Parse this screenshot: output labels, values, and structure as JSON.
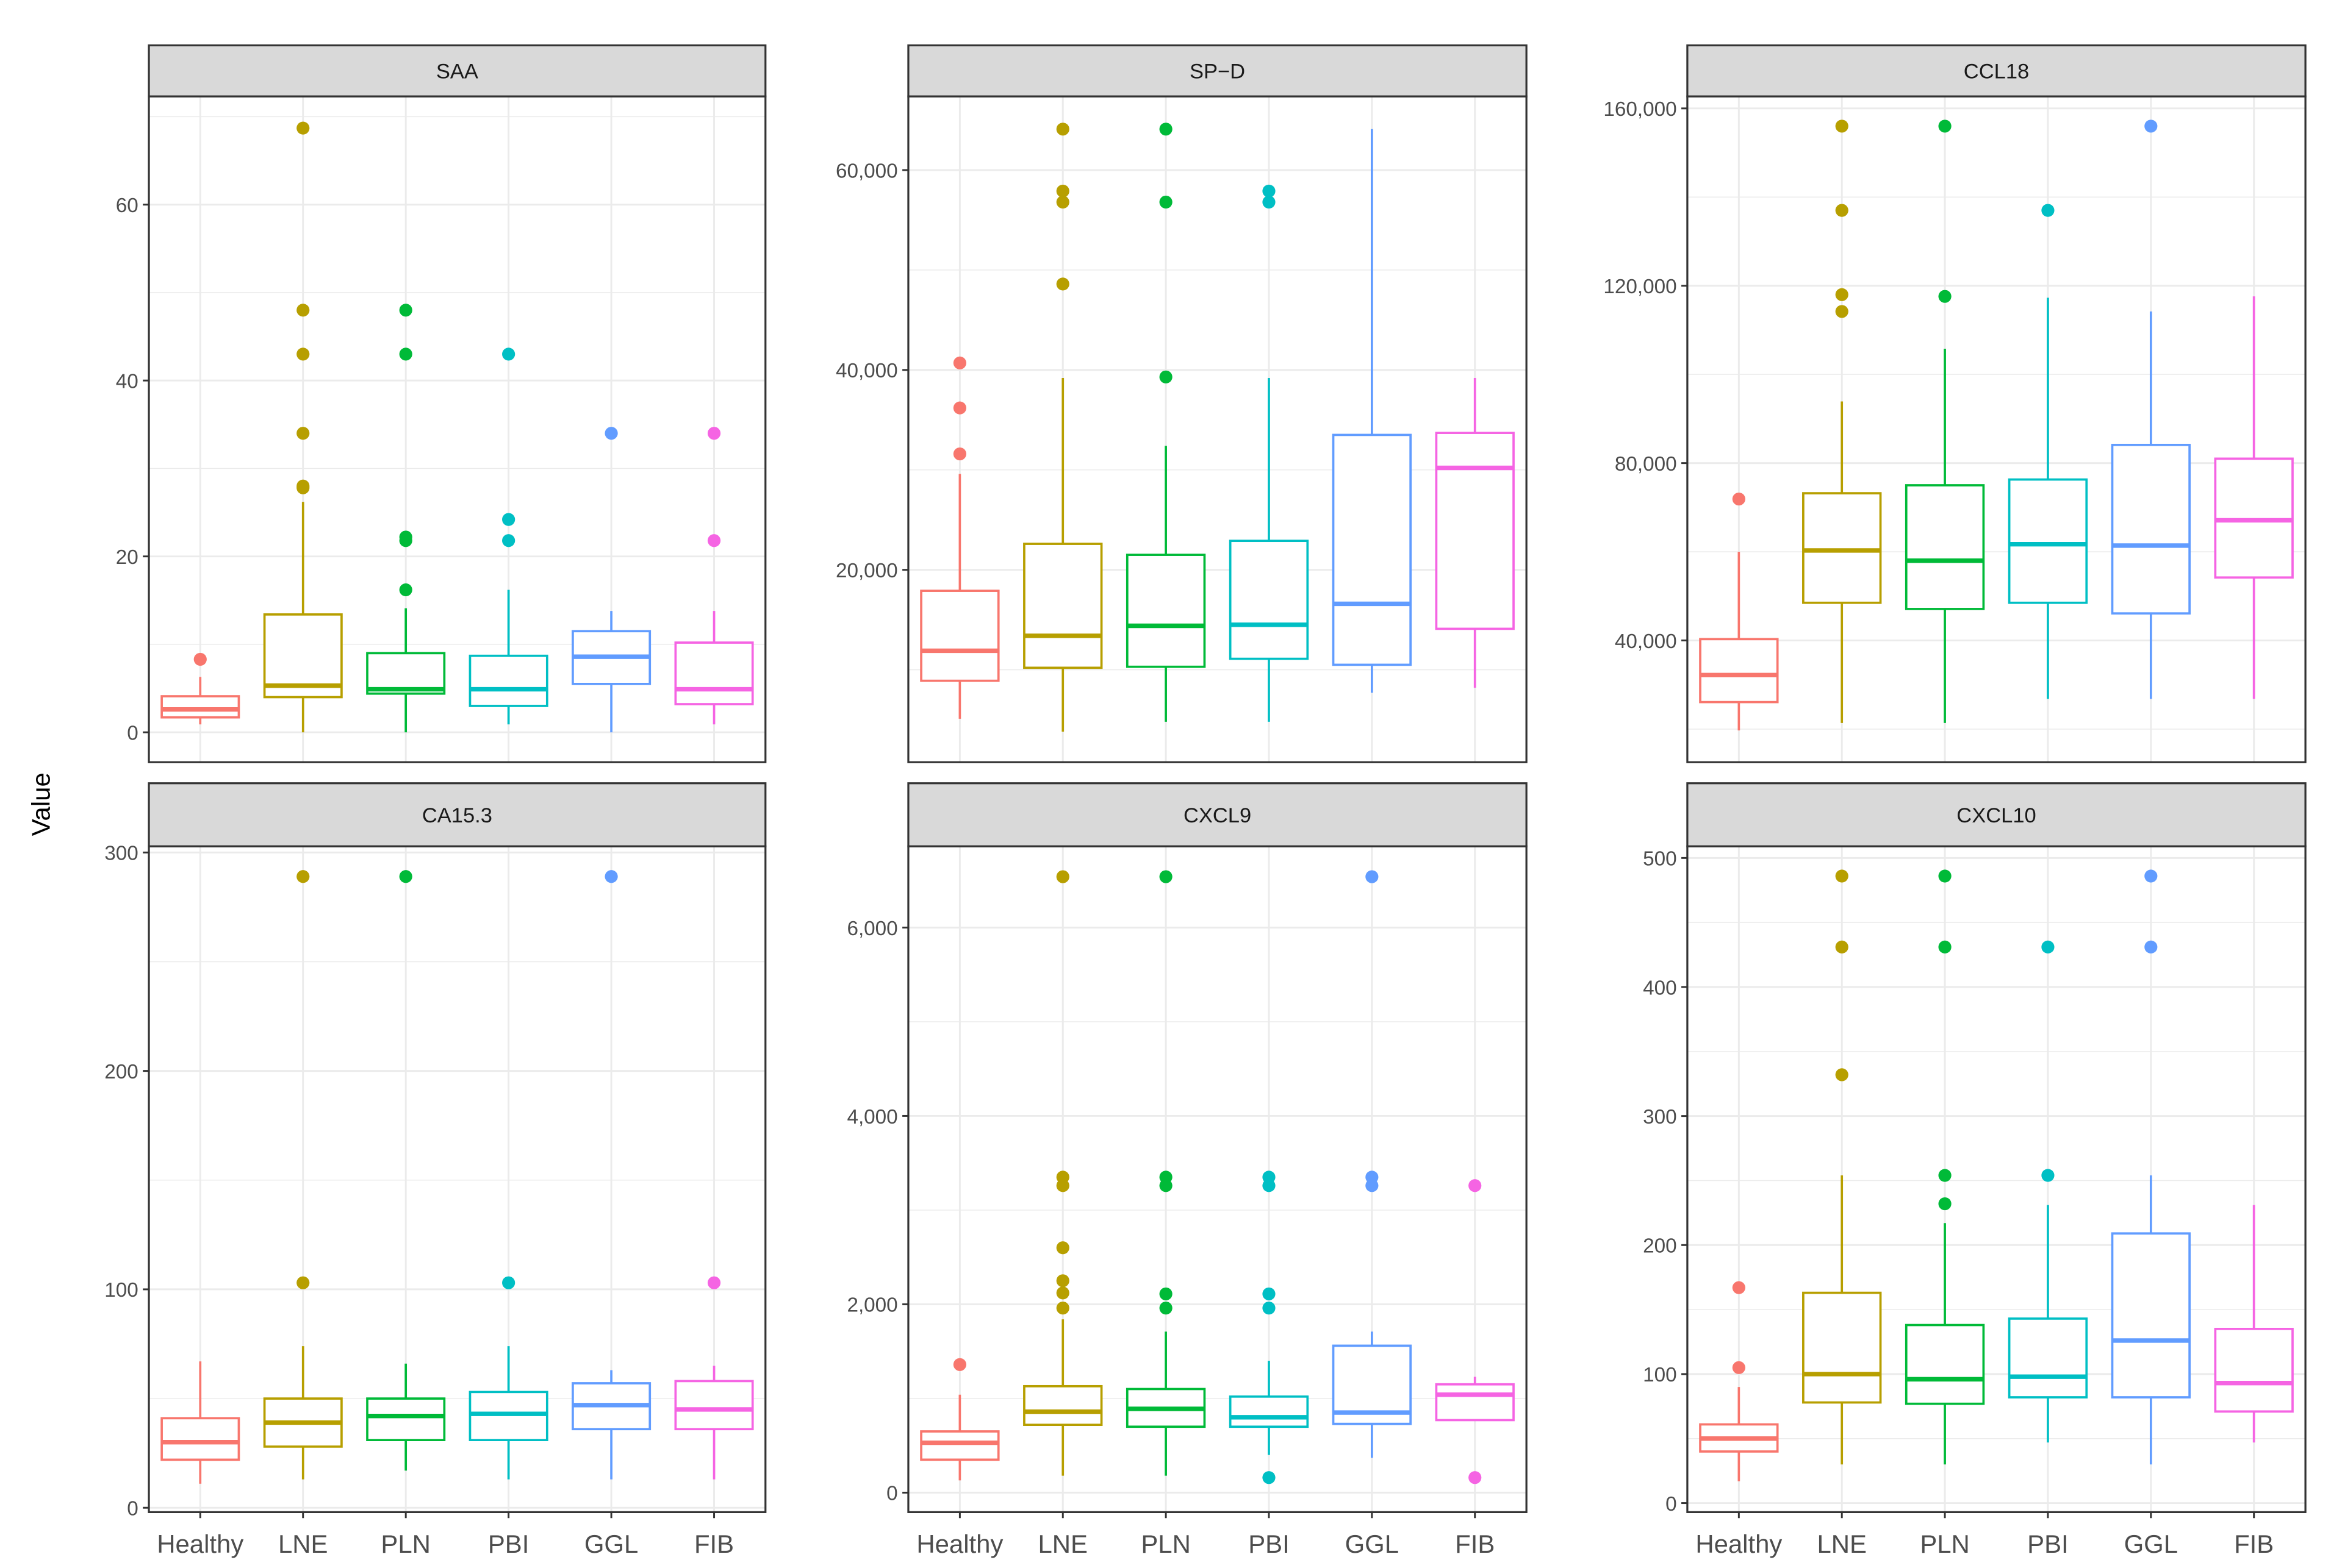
{
  "chart_data": {
    "type": "box",
    "ylabel": "Value",
    "xlabel": "",
    "categories": [
      "Healthy",
      "LNE",
      "PLN",
      "PBI",
      "GGL",
      "FIB"
    ],
    "colors": [
      "#F8766D",
      "#B79F00",
      "#00BA38",
      "#00BFC4",
      "#619CFF",
      "#F564E3"
    ],
    "grid": true,
    "legend": "none",
    "panels": [
      {
        "title": "SAA",
        "ylim": [
          -3.4,
          72.3
        ],
        "yticks": [
          0,
          20,
          40,
          60
        ],
        "ytick_labels": [
          "0",
          "20",
          "40",
          "60"
        ],
        "boxes": [
          {
            "low": 0.9,
            "q1": 1.7,
            "median": 2.6,
            "q3": 4.1,
            "high": 6.3,
            "outliers": [
              8.3
            ]
          },
          {
            "low": 0,
            "q1": 4.0,
            "median": 5.3,
            "q3": 13.4,
            "high": 26.2,
            "outliers": [
              27.8,
              28,
              34,
              43,
              48,
              68.7
            ]
          },
          {
            "low": 0,
            "q1": 4.4,
            "median": 4.9,
            "q3": 9.0,
            "high": 14.1,
            "outliers": [
              16.2,
              21.8,
              22.2,
              43,
              48
            ]
          },
          {
            "low": 0.9,
            "q1": 3.0,
            "median": 4.9,
            "q3": 8.7,
            "high": 16.2,
            "outliers": [
              21.8,
              24.2,
              43
            ]
          },
          {
            "low": 0,
            "q1": 5.5,
            "median": 8.6,
            "q3": 11.5,
            "high": 13.8,
            "outliers": [
              34
            ]
          },
          {
            "low": 0.9,
            "q1": 3.2,
            "median": 4.9,
            "q3": 10.2,
            "high": 13.8,
            "outliers": [
              21.8,
              34
            ]
          }
        ]
      },
      {
        "title": "SP−D",
        "ylim": [
          750,
          67370
        ],
        "yticks": [
          20000,
          40000,
          60000
        ],
        "ytick_labels": [
          "20,000",
          "40,000",
          "60,000"
        ],
        "boxes": [
          {
            "low": 5100,
            "q1": 8900,
            "median": 11900,
            "q3": 17900,
            "high": 29600,
            "outliers": [
              31600,
              36200,
              40700
            ]
          },
          {
            "low": 3800,
            "q1": 10200,
            "median": 13400,
            "q3": 22600,
            "high": 39200,
            "outliers": [
              48600,
              56800,
              57900,
              64100
            ]
          },
          {
            "low": 4800,
            "q1": 10300,
            "median": 14400,
            "q3": 21500,
            "high": 32400,
            "outliers": [
              39300,
              56800,
              64100
            ]
          },
          {
            "low": 4800,
            "q1": 11100,
            "median": 14500,
            "q3": 22900,
            "high": 39200,
            "outliers": [
              56800,
              57900
            ]
          },
          {
            "low": 7700,
            "q1": 10500,
            "median": 16600,
            "q3": 33500,
            "high": 64100,
            "outliers": []
          },
          {
            "low": 8200,
            "q1": 14100,
            "median": 30200,
            "q3": 33700,
            "high": 39200,
            "outliers": []
          }
        ]
      },
      {
        "title": "CCL18",
        "ylim": [
          12540,
          162700
        ],
        "yticks": [
          40000,
          80000,
          120000,
          160000
        ],
        "ytick_labels": [
          "40,000",
          "80,000",
          "120,000",
          "160,000"
        ],
        "boxes": [
          {
            "low": 19700,
            "q1": 26100,
            "median": 32200,
            "q3": 40300,
            "high": 60000,
            "outliers": [
              71900
            ]
          },
          {
            "low": 21400,
            "q1": 48500,
            "median": 60300,
            "q3": 73200,
            "high": 93900,
            "outliers": [
              114200,
              118000,
              137000,
              156000
            ]
          },
          {
            "low": 21400,
            "q1": 47100,
            "median": 58000,
            "q3": 75000,
            "high": 105800,
            "outliers": [
              117600,
              156000
            ]
          },
          {
            "low": 26800,
            "q1": 48500,
            "median": 61700,
            "q3": 76300,
            "high": 117300,
            "outliers": [
              137000
            ]
          },
          {
            "low": 26800,
            "q1": 46100,
            "median": 61400,
            "q3": 84100,
            "high": 114200,
            "outliers": [
              156000
            ]
          },
          {
            "low": 26800,
            "q1": 54200,
            "median": 67100,
            "q3": 81000,
            "high": 117600,
            "outliers": []
          }
        ]
      },
      {
        "title": "CA15.3",
        "ylim": [
          -2,
          302.8
        ],
        "yticks": [
          0,
          100,
          200,
          300
        ],
        "ytick_labels": [
          "0",
          "100",
          "200",
          "300"
        ],
        "boxes": [
          {
            "low": 11,
            "q1": 22,
            "median": 30,
            "q3": 41,
            "high": 67,
            "outliers": []
          },
          {
            "low": 13,
            "q1": 28,
            "median": 39,
            "q3": 50,
            "high": 74,
            "outliers": [
              103,
              289
            ]
          },
          {
            "low": 17,
            "q1": 31,
            "median": 42,
            "q3": 50,
            "high": 66,
            "outliers": [
              289
            ]
          },
          {
            "low": 13,
            "q1": 31,
            "median": 43,
            "q3": 53,
            "high": 74,
            "outliers": [
              103
            ]
          },
          {
            "low": 13,
            "q1": 36,
            "median": 47,
            "q3": 57,
            "high": 63,
            "outliers": [
              289
            ]
          },
          {
            "low": 13,
            "q1": 36,
            "median": 45,
            "q3": 58,
            "high": 65,
            "outliers": [
              103
            ]
          }
        ]
      },
      {
        "title": "CXCL9",
        "ylim": [
          -207,
          6862
        ],
        "yticks": [
          0,
          2000,
          4000,
          6000
        ],
        "ytick_labels": [
          "0",
          "2,000",
          "4,000",
          "6,000"
        ],
        "boxes": [
          {
            "low": 130,
            "q1": 350,
            "median": 530,
            "q3": 650,
            "high": 1040,
            "outliers": [
              1360
            ]
          },
          {
            "low": 180,
            "q1": 720,
            "median": 860,
            "q3": 1130,
            "high": 1840,
            "outliers": [
              1960,
              2120,
              2250,
              2600,
              3260,
              3350,
              6540
            ]
          },
          {
            "low": 180,
            "q1": 700,
            "median": 890,
            "q3": 1100,
            "high": 1710,
            "outliers": [
              1960,
              2110,
              3260,
              3350,
              6540
            ]
          },
          {
            "low": 400,
            "q1": 700,
            "median": 800,
            "q3": 1020,
            "high": 1400,
            "outliers": [
              160,
              1960,
              2110,
              3260,
              3350
            ]
          },
          {
            "low": 370,
            "q1": 730,
            "median": 850,
            "q3": 1560,
            "high": 1710,
            "outliers": [
              3260,
              3350,
              6540
            ]
          },
          {
            "low": 770,
            "q1": 770,
            "median": 1040,
            "q3": 1150,
            "high": 1230,
            "outliers": [
              160,
              3260
            ]
          }
        ]
      },
      {
        "title": "CXCL10",
        "ylim": [
          -7,
          509
        ],
        "yticks": [
          0,
          100,
          200,
          300,
          400,
          500
        ],
        "ytick_labels": [
          "0",
          "100",
          "200",
          "300",
          "400",
          "500"
        ],
        "boxes": [
          {
            "low": 17,
            "q1": 40,
            "median": 50,
            "q3": 61,
            "high": 90,
            "outliers": [
              105,
              167
            ]
          },
          {
            "low": 30,
            "q1": 78,
            "median": 100,
            "q3": 163,
            "high": 254,
            "outliers": [
              332,
              431,
              486
            ]
          },
          {
            "low": 30,
            "q1": 77,
            "median": 96,
            "q3": 138,
            "high": 217,
            "outliers": [
              232,
              254,
              431,
              486
            ]
          },
          {
            "low": 47,
            "q1": 82,
            "median": 98,
            "q3": 143,
            "high": 231,
            "outliers": [
              254,
              431
            ]
          },
          {
            "low": 30,
            "q1": 82,
            "median": 126,
            "q3": 209,
            "high": 254,
            "outliers": [
              431,
              486
            ]
          },
          {
            "low": 47,
            "q1": 71,
            "median": 93,
            "q3": 135,
            "high": 231,
            "outliers": []
          }
        ]
      }
    ]
  }
}
